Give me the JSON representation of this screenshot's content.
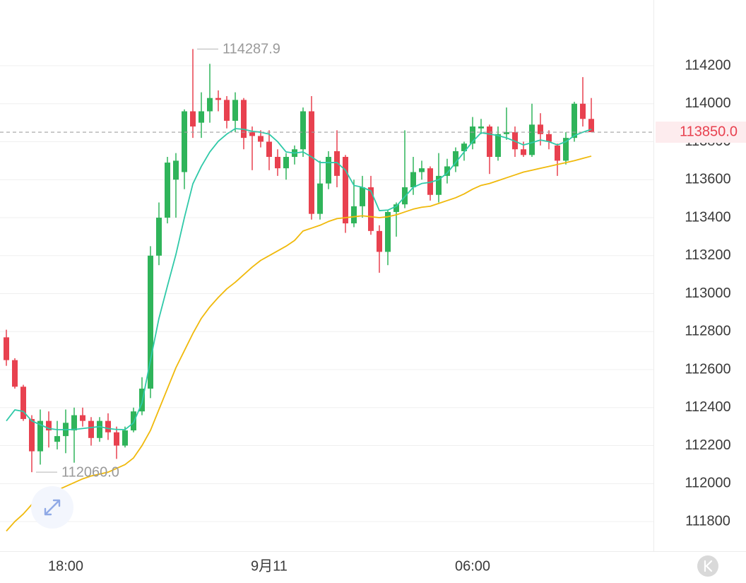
{
  "chart_data": {
    "type": "candlestick",
    "categories": [
      null,
      null,
      null,
      null,
      null,
      null,
      null,
      "18:00",
      null,
      null,
      null,
      null,
      null,
      null,
      null,
      null,
      null,
      null,
      null,
      null,
      null,
      null,
      null,
      null,
      null,
      null,
      null,
      null,
      null,
      null,
      null,
      "9月11",
      null,
      null,
      null,
      null,
      null,
      null,
      null,
      null,
      null,
      null,
      null,
      null,
      null,
      null,
      null,
      null,
      null,
      null,
      null,
      null,
      null,
      null,
      null,
      "06:00",
      null,
      null,
      null,
      null,
      null,
      null,
      null,
      null,
      null,
      null,
      null,
      null,
      null,
      null
    ],
    "open": [
      112770,
      112650,
      112510,
      112340,
      112170,
      112330,
      112220,
      112250,
      112280,
      112360,
      112330,
      112240,
      112330,
      112270,
      112200,
      112280,
      112380,
      112500,
      113200,
      113400,
      113600,
      113640,
      113960,
      113900,
      113960,
      114030,
      114020,
      113910,
      114020,
      113850,
      113830,
      113800,
      113720,
      113660,
      113720,
      113760,
      113960,
      113420,
      113580,
      113750,
      113720,
      113370,
      113460,
      113560,
      113330,
      113220,
      113430,
      113470,
      113560,
      113640,
      113660,
      113520,
      113620,
      113670,
      113750,
      113790,
      113870,
      113880,
      113720,
      113840,
      113850,
      113760,
      113730,
      113890,
      113840,
      113780,
      113700,
      113820,
      114000,
      113920
    ],
    "high": [
      112810,
      112660,
      112520,
      112360,
      112390,
      112380,
      112330,
      112390,
      112400,
      112400,
      112350,
      112350,
      112370,
      112300,
      112300,
      112400,
      112560,
      113250,
      113480,
      113720,
      113740,
      113970,
      114287.9,
      114060,
      114210,
      114070,
      114040,
      114060,
      114030,
      113880,
      113860,
      113860,
      113760,
      113740,
      113780,
      113980,
      114040,
      113700,
      113750,
      113860,
      113730,
      113600,
      113620,
      113620,
      113360,
      113440,
      113480,
      113860,
      113720,
      113700,
      113670,
      113740,
      113710,
      113770,
      113800,
      113930,
      113920,
      113890,
      113880,
      113980,
      113880,
      113800,
      114000,
      113950,
      113860,
      113790,
      113850,
      114010,
      114140,
      114030
    ],
    "low": [
      112620,
      112500,
      112330,
      112060,
      112100,
      112190,
      112180,
      112160,
      112110,
      112300,
      112200,
      112220,
      112230,
      112130,
      112190,
      112270,
      112360,
      112450,
      113150,
      113370,
      113400,
      113550,
      113820,
      113820,
      113900,
      113960,
      113870,
      113850,
      113760,
      113650,
      113770,
      113650,
      113620,
      113600,
      113680,
      113720,
      113390,
      113390,
      113550,
      113560,
      113320,
      113350,
      113400,
      113310,
      113110,
      113150,
      113300,
      113450,
      113520,
      113600,
      113490,
      113480,
      113580,
      113640,
      113700,
      113760,
      113840,
      113630,
      113700,
      113810,
      113720,
      113720,
      113720,
      113780,
      113760,
      113620,
      113680,
      113800,
      113880,
      113850
    ],
    "close": [
      112650,
      112510,
      112340,
      112170,
      112330,
      112280,
      112250,
      112320,
      112360,
      112330,
      112240,
      112330,
      112270,
      112200,
      112280,
      112380,
      112500,
      113200,
      113400,
      113690,
      113700,
      113960,
      113880,
      113960,
      114030,
      114020,
      113910,
      114020,
      113820,
      113830,
      113800,
      113720,
      113660,
      113720,
      113760,
      113960,
      113420,
      113580,
      113720,
      113620,
      113370,
      113460,
      113560,
      113330,
      113220,
      113430,
      113470,
      113560,
      113640,
      113660,
      113520,
      113620,
      113670,
      113750,
      113790,
      113880,
      113880,
      113720,
      113840,
      113850,
      113760,
      113730,
      113890,
      113840,
      113800,
      113700,
      113820,
      114000,
      113920,
      113850
    ],
    "up_color": "#2fb45a",
    "down_color": "#e8414f",
    "ma_series": [
      {
        "color": "#2fc9a8",
        "values": [
          112330,
          112388,
          112380,
          112330,
          112310,
          112290,
          112284,
          112284,
          112285,
          112290,
          112295,
          112300,
          112290,
          112285,
          112284,
          112320,
          112425,
          112650,
          112870,
          113040,
          113206,
          113400,
          113578,
          113670,
          113746,
          113802,
          113840,
          113869,
          113865,
          113855,
          113850,
          113840,
          113800,
          113746,
          113740,
          113746,
          113720,
          113690,
          113690,
          113690,
          113650,
          113570,
          113560,
          113541,
          113437,
          113440,
          113460,
          113510,
          113560,
          113580,
          113586,
          113600,
          113635,
          113690,
          113746,
          113800,
          113847,
          113840,
          113832,
          113820,
          113802,
          113783,
          113795,
          113809,
          113800,
          113783,
          113800,
          113832,
          113850,
          113865
        ]
      },
      {
        "color": "#f0b90b",
        "values": [
          111750,
          111800,
          111840,
          111890,
          111920,
          111945,
          111965,
          111985,
          112005,
          112025,
          112040,
          112050,
          112060,
          112080,
          112100,
          112135,
          112200,
          112280,
          112390,
          112500,
          112610,
          112700,
          112790,
          112870,
          112930,
          112980,
          113025,
          113060,
          113100,
          113140,
          113175,
          113200,
          113225,
          113250,
          113280,
          113330,
          113345,
          113360,
          113380,
          113395,
          113400,
          113405,
          113410,
          113405,
          113400,
          113405,
          113415,
          113430,
          113445,
          113455,
          113460,
          113475,
          113490,
          113505,
          113525,
          113550,
          113570,
          113580,
          113595,
          113610,
          113625,
          113640,
          113650,
          113660,
          113670,
          113680,
          113690,
          113700,
          113712,
          113724
        ]
      }
    ],
    "ylim": [
      111644,
      114546
    ],
    "yticks": [
      111800,
      112000,
      112200,
      112400,
      112600,
      112800,
      113000,
      113200,
      113400,
      113600,
      113800,
      114000,
      114200
    ],
    "grid": true,
    "max_annotation": {
      "value": 114287.9,
      "label": "114287.9"
    },
    "min_annotation": {
      "value": 112060,
      "label": "112060.0"
    },
    "last_price": {
      "value": 113850,
      "label": "113850.0"
    }
  }
}
